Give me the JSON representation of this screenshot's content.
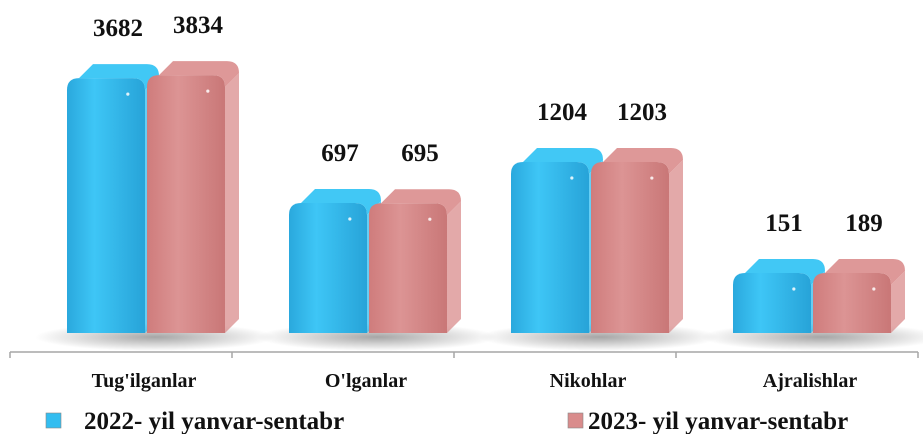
{
  "chart_data": {
    "type": "bar",
    "categories": [
      "Tug'ilganlar",
      "O'lganlar",
      "Nikohlar",
      "Ajralishlar"
    ],
    "series": [
      {
        "name": "2022- yil yanvar-sentabr",
        "values": [
          3682,
          697,
          1204,
          151
        ],
        "color": "#33bdf0"
      },
      {
        "name": "2023- yil yanvar-sentabr",
        "values": [
          3834,
          695,
          1203,
          189
        ],
        "color": "#d98c8c"
      }
    ],
    "title": "",
    "xlabel": "",
    "ylabel": "",
    "grid": false,
    "legend": "bottom"
  }
}
